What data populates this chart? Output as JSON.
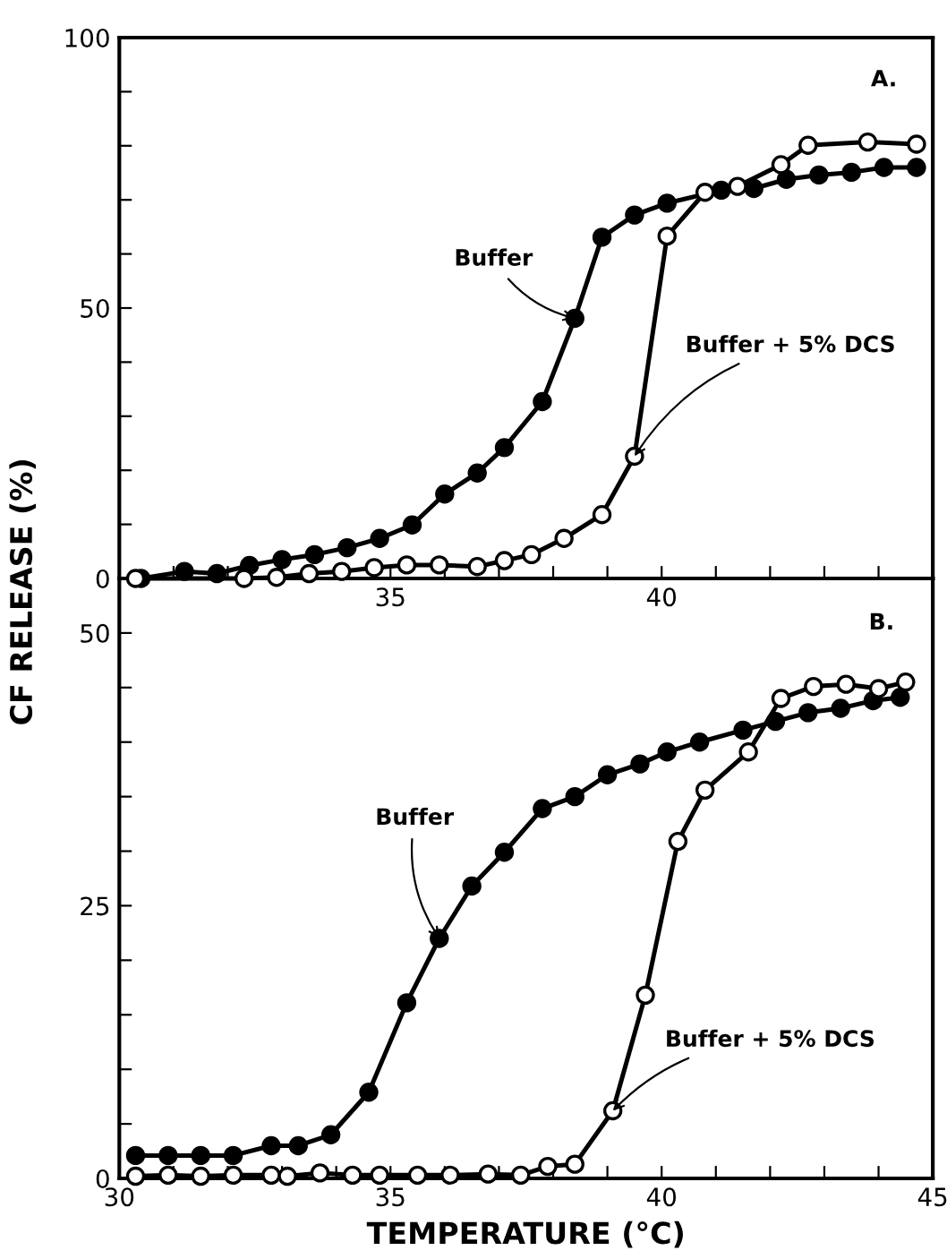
{
  "chart_data": [
    {
      "type": "line",
      "ylabel": "CF RELEASE (%)",
      "xlim": [
        30,
        45
      ],
      "ylim": [
        0,
        100
      ],
      "xticks": [
        {
          "value": 30,
          "label": null
        },
        {
          "value": 31,
          "label": null
        },
        {
          "value": 32,
          "label": null
        },
        {
          "value": 33,
          "label": null
        },
        {
          "value": 34,
          "label": null
        },
        35,
        {
          "value": 36,
          "label": null
        },
        {
          "value": 37,
          "label": null
        },
        {
          "value": 38,
          "label": null
        },
        {
          "value": 39,
          "label": null
        },
        40,
        {
          "value": 41,
          "label": null
        },
        {
          "value": 42,
          "label": null
        },
        {
          "value": 43,
          "label": null
        },
        {
          "value": 44,
          "label": null
        },
        {
          "value": 45,
          "label": null
        }
      ],
      "yticks": [
        0,
        {
          "value": 10,
          "label": null
        },
        {
          "value": 20,
          "label": null
        },
        {
          "value": 30,
          "label": null
        },
        {
          "value": 40,
          "label": null
        },
        50,
        {
          "value": 60,
          "label": null
        },
        {
          "value": 70,
          "label": null
        },
        {
          "value": 80,
          "label": null
        },
        {
          "value": 90,
          "label": null
        },
        100
      ],
      "marker": "circle",
      "line_style": "solid",
      "grid": false,
      "legend": false,
      "series": [
        {
          "color": "#000000",
          "x": [
            30.4,
            31.2,
            31.8,
            32.4,
            33.0,
            33.6,
            34.2,
            34.8,
            35.4,
            36.0,
            36.6,
            37.1,
            37.8,
            38.4,
            38.9,
            39.5,
            40.1,
            41.1,
            41.7,
            42.3,
            42.9,
            43.5,
            44.1,
            44.7
          ],
          "values": [
            0,
            1.3,
            0.9,
            2.4,
            3.5,
            4.4,
            5.7,
            7.4,
            9.9,
            15.6,
            19.5,
            24.2,
            32.7,
            48.1,
            63.1,
            67.2,
            69.4,
            71.8,
            72.1,
            73.8,
            74.6,
            75.1,
            76.0,
            76.0
          ]
        },
        {
          "color": "#ffffff",
          "x": [
            30.3,
            32.3,
            32.9,
            33.5,
            34.1,
            34.7,
            35.3,
            35.9,
            36.6,
            37.1,
            37.6,
            38.2,
            38.9,
            39.5,
            40.1,
            40.8,
            41.4,
            42.2,
            42.7,
            43.8,
            44.7
          ],
          "values": [
            0,
            0,
            0.2,
            0.9,
            1.3,
            2.0,
            2.5,
            2.5,
            2.2,
            3.3,
            4.4,
            7.4,
            11.8,
            22.6,
            63.3,
            71.4,
            72.5,
            76.5,
            80.1,
            80.7,
            80.3
          ]
        }
      ],
      "annotations": [
        "A.",
        {
          "text": "Buffer",
          "x": 38.4,
          "y": 48.1
        },
        {
          "text": "Buffer + 5% DCS",
          "x": 39.5,
          "y": 22.6
        }
      ]
    },
    {
      "type": "line",
      "xlabel": "TEMPERATURE (°C)",
      "xlim": [
        30,
        45
      ],
      "ylim": [
        0,
        55
      ],
      "xticks": [
        30,
        {
          "value": 31,
          "label": null
        },
        {
          "value": 32,
          "label": null
        },
        {
          "value": 33,
          "label": null
        },
        {
          "value": 34,
          "label": null
        },
        35,
        {
          "value": 36,
          "label": null
        },
        {
          "value": 37,
          "label": null
        },
        {
          "value": 38,
          "label": null
        },
        {
          "value": 39,
          "label": null
        },
        40,
        {
          "value": 41,
          "label": null
        },
        {
          "value": 42,
          "label": null
        },
        {
          "value": 43,
          "label": null
        },
        {
          "value": 44,
          "label": null
        },
        45
      ],
      "yticks": [
        0,
        {
          "value": 5,
          "label": null
        },
        {
          "value": 10,
          "label": null
        },
        {
          "value": 15,
          "label": null
        },
        {
          "value": 20,
          "label": null
        },
        25,
        {
          "value": 30,
          "label": null
        },
        {
          "value": 35,
          "label": null
        },
        {
          "value": 40,
          "label": null
        },
        {
          "value": 45,
          "label": null
        },
        50
      ],
      "marker": "circle",
      "line_style": "solid",
      "grid": false,
      "legend": false,
      "series": [
        {
          "color": "#000000",
          "x": [
            30.3,
            30.9,
            31.5,
            32.1,
            32.8,
            33.3,
            33.9,
            34.6,
            35.3,
            35.9,
            36.5,
            37.1,
            37.8,
            38.4,
            39.0,
            39.6,
            40.1,
            40.7,
            41.5,
            42.1,
            42.7,
            43.3,
            43.9,
            44.4
          ],
          "values": [
            2.1,
            2.1,
            2.1,
            2.1,
            3.0,
            3.0,
            4.0,
            7.9,
            16.1,
            22.0,
            26.8,
            29.9,
            33.9,
            35.0,
            37.0,
            38.0,
            39.1,
            40.0,
            41.1,
            41.9,
            42.7,
            43.1,
            43.8,
            44.1
          ]
        },
        {
          "color": "#ffffff",
          "x": [
            30.3,
            30.9,
            31.5,
            32.1,
            32.8,
            33.1,
            33.7,
            34.3,
            34.8,
            35.5,
            36.1,
            36.8,
            37.4,
            37.9,
            38.4,
            39.1,
            39.7,
            40.3,
            40.8,
            41.6,
            42.2,
            42.8,
            43.4,
            44.0,
            44.5
          ],
          "values": [
            0.2,
            0.3,
            0.2,
            0.3,
            0.3,
            0.2,
            0.5,
            0.3,
            0.3,
            0.3,
            0.3,
            0.4,
            0.3,
            1.1,
            1.3,
            6.2,
            16.8,
            30.9,
            35.6,
            39.1,
            44.0,
            45.1,
            45.3,
            44.9,
            45.5
          ]
        }
      ],
      "annotations": [
        "B.",
        {
          "text": "Buffer",
          "x": 35.9,
          "y": 22.0
        },
        {
          "text": "Buffer + 5% DCS",
          "x": 39.1,
          "y": 6.2
        }
      ]
    }
  ]
}
